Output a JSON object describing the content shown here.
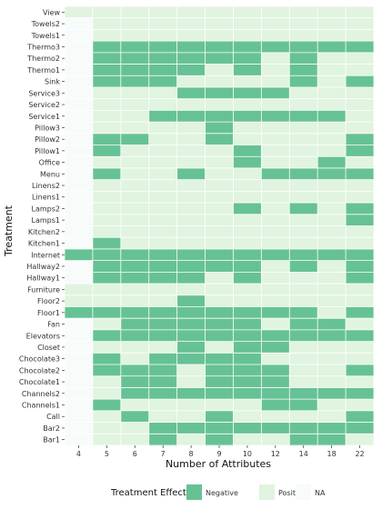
{
  "chart_data": {
    "type": "heatmap",
    "title": "",
    "xlabel": "Number of Attributes",
    "ylabel": "Treatment",
    "x_categories": [
      "4",
      "5",
      "6",
      "7",
      "8",
      "9",
      "10",
      "12",
      "14",
      "18",
      "22"
    ],
    "y_categories": [
      "View",
      "Towels2",
      "Towels1",
      "Thermo3",
      "Thermo2",
      "Thermo1",
      "Sink",
      "Service3",
      "Service2",
      "Service1",
      "Pillow3",
      "Pillow2",
      "Pillow1",
      "Office",
      "Menu",
      "Linens2",
      "Linens1",
      "Lamps2",
      "Lamps1",
      "Kitchen2",
      "Kitchen1",
      "Internet",
      "Hallway2",
      "Hallway1",
      "Furniture",
      "Floor2",
      "Floor1",
      "Fan",
      "Elevators",
      "Closet",
      "Chocolate3",
      "Chocolate2",
      "Chocolate1",
      "Channels2",
      "Channels1",
      "Call",
      "Bar2",
      "Bar1"
    ],
    "legend": {
      "title": "Treatment Effect",
      "position": "bottom",
      "entries": [
        {
          "label": "Negative",
          "value": "N"
        },
        {
          "label": "Positive",
          "value": "P"
        },
        {
          "label": "NA",
          "value": "."
        }
      ]
    },
    "values": [
      "PPPPPPPPPPP",
      ".PPPPPPPPPP",
      ".PPPPPPPPPP",
      ".NNNNNNNNNN",
      ".NNNNNNPNPP",
      ".NNNNPNPNPP",
      ".NNNPPPPNPN",
      ".PPPNNNNPPP",
      ".PPPPPPPPPP",
      ".PPNNNNNNNP",
      ".PPPPNPPPPP",
      ".NNPPNPPPPN",
      ".NPPPPNPPPN",
      ".PPPPPNPPNP",
      ".NPPNPPNNNN",
      ".PPPPPPPPPP",
      ".PPPPPPPPPP",
      ".PPPPPNPNPN",
      ".PPPPPPPPPN",
      ".PPPPPPPPPP",
      ".NPPPPPPPPP",
      "NNNNNNNNNNN",
      ".NNNNNNPNPN",
      ".NNNNPNPPPN",
      "PPPPPPPPPPP",
      "PPPPNPPPPPP",
      "NNNNNNNNNPN",
      ".PNNNNNPNNP",
      ".NNNNNNNNNN",
      ".PPPNPNNPPP",
      ".NPNNNNPPPP",
      ".NNNPNNNPPN",
      ".PNNPNNNPPP",
      ".PNNNNNNNNN",
      ".NPPPPPNNPP",
      ".PNPPNPPPPN",
      ".PPNNNNNNNN",
      ".PPNPNPPNNP"
    ],
    "colors": {
      "N": "#66c294",
      "P": "#e0f4df",
      ".": "#f7fbf9"
    },
    "grid": true
  }
}
